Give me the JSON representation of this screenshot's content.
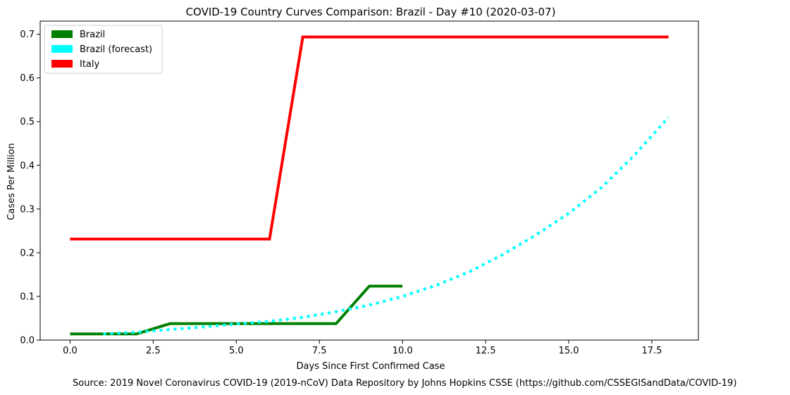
{
  "chart_data": {
    "type": "line",
    "title": "COVID-19 Country Curves Comparison: Brazil - Day #10 (2020-03-07)",
    "xlabel": "Days Since First Confirmed Case",
    "ylabel": "Cases Per Million",
    "xlim": [
      -0.9,
      18.9
    ],
    "ylim": [
      0,
      0.73
    ],
    "xticks": [
      0,
      2.5,
      5,
      7.5,
      10,
      12.5,
      15,
      17.5
    ],
    "xtick_labels": [
      "0.0",
      "2.5",
      "5.0",
      "7.5",
      "10.0",
      "12.5",
      "15.0",
      "17.5"
    ],
    "yticks": [
      0,
      0.1,
      0.2,
      0.3,
      0.4,
      0.5,
      0.6,
      0.7
    ],
    "ytick_labels": [
      "0.0",
      "0.1",
      "0.2",
      "0.3",
      "0.4",
      "0.5",
      "0.6",
      "0.7"
    ],
    "grid": false,
    "legend_position": "top-left",
    "series": [
      {
        "name": "Brazil",
        "color": "#008000",
        "style": "solid",
        "x": [
          0,
          1,
          2,
          3,
          4,
          5,
          6,
          7,
          8,
          9,
          10
        ],
        "y": [
          0.0141,
          0.0141,
          0.0141,
          0.0376,
          0.0376,
          0.0376,
          0.0376,
          0.0376,
          0.0376,
          0.1234,
          0.1234
        ]
      },
      {
        "name": "Brazil (forecast)",
        "color": "#00ffff",
        "style": "dotted",
        "x": [
          1,
          2,
          3,
          4,
          5,
          6,
          7,
          8,
          9,
          10,
          11,
          12,
          13,
          14,
          15,
          16,
          17,
          18
        ],
        "y": [
          0.0141,
          0.018,
          0.024,
          0.03,
          0.037,
          0.043,
          0.052,
          0.065,
          0.08,
          0.1,
          0.125,
          0.156,
          0.195,
          0.24,
          0.29,
          0.35,
          0.425,
          0.51
        ]
      },
      {
        "name": "Italy",
        "color": "#ff0000",
        "style": "solid",
        "x": [
          0,
          1,
          2,
          3,
          4,
          5,
          6,
          7,
          8,
          9,
          10,
          11,
          12,
          13,
          14,
          15,
          16,
          17,
          18
        ],
        "y": [
          0.2312,
          0.2312,
          0.2312,
          0.2312,
          0.2312,
          0.2312,
          0.2312,
          0.6937,
          0.6937,
          0.6937,
          0.6937,
          0.6937,
          0.6937,
          0.6937,
          0.6937,
          0.6937,
          0.6937,
          0.6937,
          0.6937
        ]
      }
    ],
    "source_note": "Source: 2019 Novel Coronavirus COVID-19 (2019-nCoV) Data Repository by Johns Hopkins CSSE (https://github.com/CSSEGISandData/COVID-19)"
  }
}
